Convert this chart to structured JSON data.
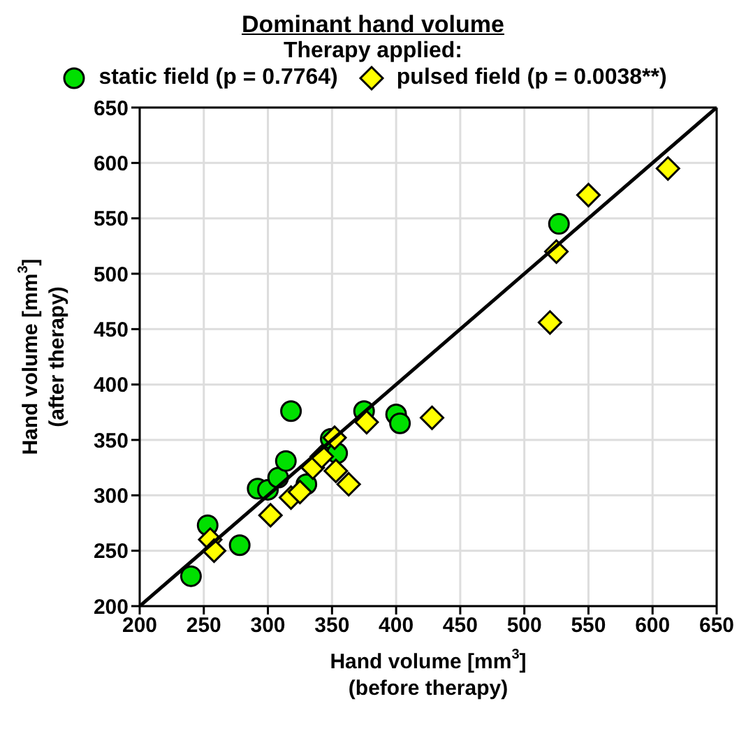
{
  "chart_data": {
    "type": "scatter",
    "title": "Dominant hand volume",
    "legend_title": "Therapy applied:",
    "xlabel": "Hand volume [mm$^{3}$]\n(before therapy)",
    "ylabel": "Hand volume [mm$^{3}$]\n(after therapy)",
    "xlim": [
      200,
      650
    ],
    "xticks": [
      200,
      250,
      300,
      350,
      400,
      450,
      500,
      550,
      600,
      650
    ],
    "ylim": [
      200,
      650
    ],
    "yticks": [
      200,
      250,
      300,
      350,
      400,
      450,
      500,
      550,
      600,
      650
    ],
    "grid": true,
    "legend": "top",
    "series": [
      {
        "name": "static field (p = 0.7764)",
        "color": "#00e000",
        "marker": "circle",
        "x": [
          240,
          253,
          278,
          292,
          300,
          308,
          314,
          318,
          330,
          349,
          354,
          375,
          400,
          403,
          527
        ],
        "values": [
          227,
          273,
          255,
          306,
          305,
          316,
          331,
          376,
          310,
          351,
          338,
          376,
          373,
          365,
          545
        ]
      },
      {
        "name": "pulsed field (p = 0.0038**)",
        "color": "#ffff00",
        "marker": "diamond",
        "x": [
          255,
          258,
          302,
          318,
          325,
          335,
          342,
          352,
          353,
          363,
          377,
          428,
          520,
          525,
          550,
          612
        ],
        "values": [
          260,
          250,
          282,
          298,
          303,
          325,
          335,
          352,
          322,
          310,
          366,
          370,
          456,
          520,
          571,
          595
        ]
      },
      {
        "type": "line",
        "color": "#000000",
        "marker": "none",
        "x": [
          200,
          650
        ],
        "values": [
          200,
          650
        ]
      }
    ]
  }
}
